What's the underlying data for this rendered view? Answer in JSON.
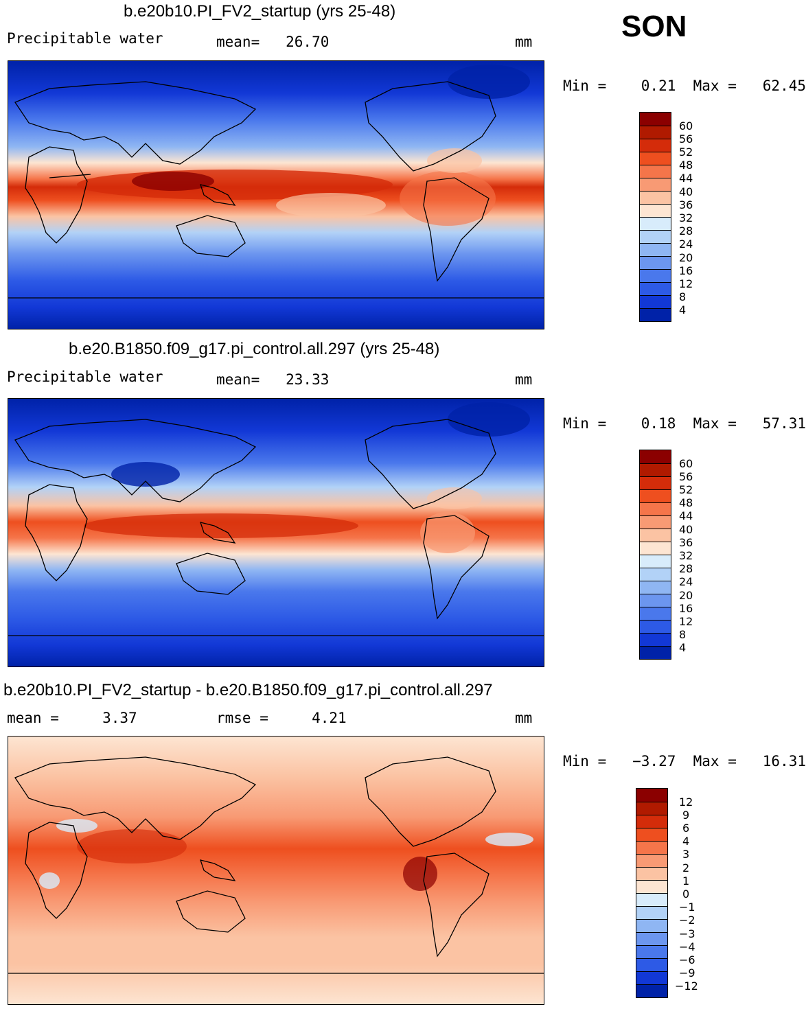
{
  "season": "SON",
  "panels": [
    {
      "title": "b.e20b10.PI_FV2_startup (yrs 25-48)",
      "left_label": "Precipitable water",
      "mid_label": "mean=   26.70",
      "units": "mm",
      "minmax": "Min =    0.21  Max =   62.45",
      "ticks": [
        "60",
        "56",
        "52",
        "48",
        "44",
        "40",
        "36",
        "32",
        "28",
        "24",
        "20",
        "16",
        "12",
        "8",
        "4"
      ],
      "colors": [
        "#8b0000",
        "#b01a00",
        "#d42c0a",
        "#ee4f1f",
        "#f5754a",
        "#f89a74",
        "#fbc3a3",
        "#fde5d2",
        "#d8ecfb",
        "#b2d2f7",
        "#8fb6f3",
        "#6c96ef",
        "#4a78ec",
        "#2d5ae6",
        "#1238d6",
        "#0022a8"
      ]
    },
    {
      "title": "b.e20.B1850.f09_g17.pi_control.all.297 (yrs 25-48)",
      "left_label": "Precipitable water",
      "mid_label": "mean=   23.33",
      "units": "mm",
      "minmax": "Min =    0.18  Max =   57.31",
      "ticks": [
        "60",
        "56",
        "52",
        "48",
        "44",
        "40",
        "36",
        "32",
        "28",
        "24",
        "20",
        "16",
        "12",
        "8",
        "4"
      ],
      "colors": [
        "#8b0000",
        "#b01a00",
        "#d42c0a",
        "#ee4f1f",
        "#f5754a",
        "#f89a74",
        "#fbc3a3",
        "#fde5d2",
        "#d8ecfb",
        "#b2d2f7",
        "#8fb6f3",
        "#6c96ef",
        "#4a78ec",
        "#2d5ae6",
        "#1238d6",
        "#0022a8"
      ]
    },
    {
      "title": "b.e20b10.PI_FV2_startup - b.e20.B1850.f09_g17.pi_control.all.297",
      "left_label": "mean =     3.37",
      "mid_label": "rmse =     4.21",
      "units": "mm",
      "minmax": "Min =   −3.27  Max =   16.31",
      "ticks": [
        "12",
        "9",
        "6",
        "4",
        "3",
        "2",
        "1",
        "0",
        "−1",
        "−2",
        "−3",
        "−4",
        "−6",
        "−9",
        "−12"
      ],
      "colors": [
        "#8b0000",
        "#b01a00",
        "#d42c0a",
        "#ee4f1f",
        "#f5754a",
        "#f89a74",
        "#fbc3a3",
        "#fde5d2",
        "#d8ecfb",
        "#b2d2f7",
        "#8fb6f3",
        "#6c96ef",
        "#4a78ec",
        "#2d5ae6",
        "#1238d6",
        "#0022a8"
      ]
    }
  ]
}
